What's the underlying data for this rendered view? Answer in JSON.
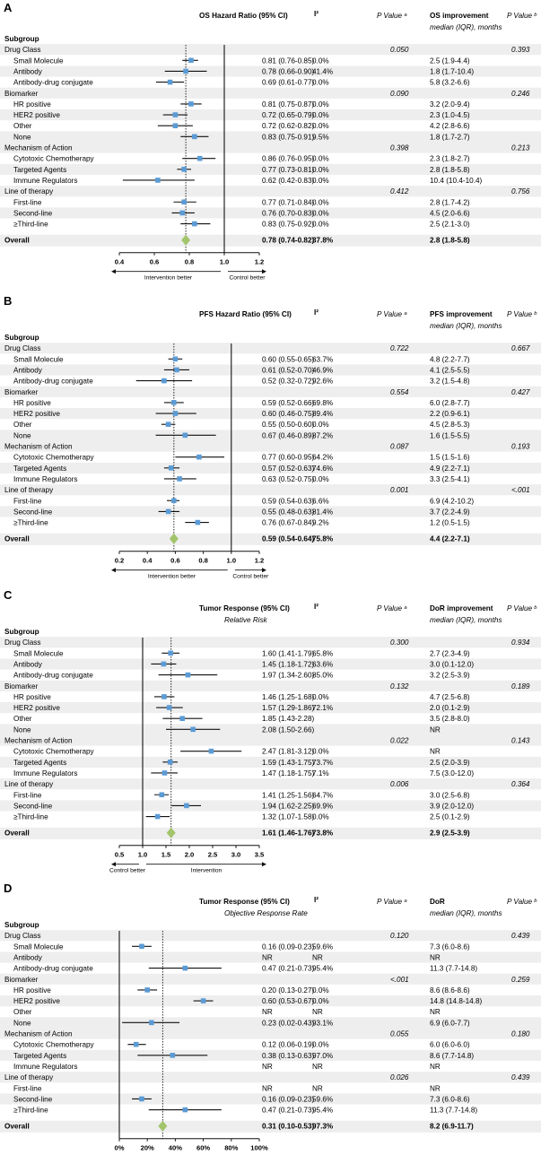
{
  "colors": {
    "row_shade": "#eeeeee",
    "point": "#5b9bd5",
    "diamond": "#a2c46b",
    "line": "#111111"
  },
  "panels": [
    {
      "id": "A",
      "header": {
        "estimate": "OS Hazard Ratio (95% CI)",
        "estimate_sub": "",
        "i2": "I²",
        "pa": "P Value ᵃ",
        "imp": "OS improvement",
        "imp_sub": "median (IQR), months",
        "pb": "P Value ᵇ"
      },
      "subgroup_label": "Subgroup",
      "groups": [
        {
          "name": "Drug Class",
          "pa": "0.050",
          "pb": "0.393",
          "rows": [
            {
              "label": "Small Molecule",
              "ci": "0.81 (0.76-0.85)",
              "i2": "0.0%",
              "imp": "2.5 (1.9-4.4)"
            },
            {
              "label": "Antibody",
              "ci": "0.78 (0.66-0.90)",
              "i2": "41.4%",
              "imp": "1.8 (1.7-10.4)"
            },
            {
              "label": "Antibody-drug conjugate",
              "ci": "0.69 (0.61-0.77)",
              "i2": "0.0%",
              "imp": "5.8 (3.2-6.6)"
            }
          ]
        },
        {
          "name": "Biomarker",
          "pa": "0.090",
          "pb": "0.246",
          "rows": [
            {
              "label": "HR positive",
              "ci": "0.81 (0.75-0.87)",
              "i2": "0.0%",
              "imp": "3.2 (2.0-9.4)"
            },
            {
              "label": "HER2 positive",
              "ci": "0.72 (0.65-0.79)",
              "i2": "0.0%",
              "imp": "2.3 (1.0-4.5)"
            },
            {
              "label": "Other",
              "ci": "0.72 (0.62-0.82)",
              "i2": "0.0%",
              "imp": "4.2 (2.8-6.6)"
            },
            {
              "label": "None",
              "ci": "0.83 (0.75-0.91)",
              "i2": "9.5%",
              "imp": "1.8 (1.7-2.7)"
            }
          ]
        },
        {
          "name": "Mechanism of Action",
          "pa": "0.398",
          "pb": "0.213",
          "rows": [
            {
              "label": "Cytotoxic Chemotherapy",
              "ci": "0.86 (0.76-0.95)",
              "i2": "0.0%",
              "imp": "2.3 (1.8-2.7)"
            },
            {
              "label": "Targeted Agents",
              "ci": "0.77 (0.73-0.81)",
              "i2": "0.0%",
              "imp": "2.8 (1.8-5.8)"
            },
            {
              "label": "Immune Regulators",
              "ci": "0.62 (0.42-0.83)",
              "i2": "0.0%",
              "imp": "10.4 (10.4-10.4)"
            }
          ]
        },
        {
          "name": "Line of therapy",
          "pa": "0.412",
          "pb": "0.756",
          "rows": [
            {
              "label": "First-line",
              "ci": "0.77 (0.71-0.84)",
              "i2": "0.0%",
              "imp": "2.8 (1.7-4.2)"
            },
            {
              "label": "Second-line",
              "ci": "0.76 (0.70-0.83)",
              "i2": "0.0%",
              "imp": "4.5 (2.0-6.6)"
            },
            {
              "label": "≥Third-line",
              "ci": "0.83 (0.75-0.92)",
              "i2": "0.0%",
              "imp": "2.5 (2.1-3.0)"
            }
          ]
        }
      ],
      "overall": {
        "label": "Overall",
        "ci": "0.78 (0.74-0.82)",
        "i2": "37.8%",
        "imp": "2.8 (1.8-5.8)"
      },
      "left_note": "Intervention better",
      "right_note": "Control better"
    },
    {
      "id": "B",
      "header": {
        "estimate": "PFS Hazard Ratio (95% CI)",
        "estimate_sub": "",
        "i2": "I²",
        "pa": "P Value ᵃ",
        "imp": "PFS improvement",
        "imp_sub": "median (IQR), months",
        "pb": "P Value ᵇ"
      },
      "subgroup_label": "Subgroup",
      "groups": [
        {
          "name": "Drug Class",
          "pa": "0.722",
          "pb": "0.667",
          "rows": [
            {
              "label": "Small Molecule",
              "ci": "0.60 (0.55-0.65)",
              "i2": "63.7%",
              "imp": "4.8 (2.2-7.7)"
            },
            {
              "label": "Antibody",
              "ci": "0.61 (0.52-0.70)",
              "i2": "46.9%",
              "imp": "4.1 (2.5-5.5)"
            },
            {
              "label": "Antibody-drug conjugate",
              "ci": "0.52 (0.32-0.72)",
              "i2": "92.6%",
              "imp": "3.2 (1.5-4.8)"
            }
          ]
        },
        {
          "name": "Biomarker",
          "pa": "0.554",
          "pb": "0.427",
          "rows": [
            {
              "label": "HR positive",
              "ci": "0.59 (0.52-0.66)",
              "i2": "69.8%",
              "imp": "6.0 (2.8-7.7)"
            },
            {
              "label": "HER2 positive",
              "ci": "0.60 (0.46-0.75)",
              "i2": "89.4%",
              "imp": "2.2 (0.9-6.1)"
            },
            {
              "label": "Other",
              "ci": "0.55 (0.50-0.60)",
              "i2": "0.0%",
              "imp": "4.5 (2.8-5.3)"
            },
            {
              "label": "None",
              "ci": "0.67 (0.46-0.89)",
              "i2": "87.2%",
              "imp": "1.6 (1.5-5.5)"
            }
          ]
        },
        {
          "name": "Mechanism of Action",
          "pa": "0.087",
          "pb": "0.193",
          "rows": [
            {
              "label": "Cytotoxic Chemotherapy",
              "ci": "0.77 (0.60-0.95)",
              "i2": "64.2%",
              "imp": "1.5 (1.5-1.6)"
            },
            {
              "label": "Targeted Agents",
              "ci": "0.57 (0.52-0.63)",
              "i2": "74.6%",
              "imp": "4.9 (2.2-7.1)"
            },
            {
              "label": "Immune Regulators",
              "ci": "0.63 (0.52-0.75)",
              "i2": "0.0%",
              "imp": "3.3 (2.5-4.1)"
            }
          ]
        },
        {
          "name": "Line of therapy",
          "pa": "0.001",
          "pb": "<.001",
          "rows": [
            {
              "label": "First-line",
              "ci": "0.59 (0.54-0.63)",
              "i2": "6.6%",
              "imp": "6.9 (4.2-10.2)"
            },
            {
              "label": "Second-line",
              "ci": "0.55 (0.48-0.63)",
              "i2": "81.4%",
              "imp": "3.7 (2.2-4.9)"
            },
            {
              "label": "≥Third-line",
              "ci": "0.76 (0.67-0.84)",
              "i2": "9.2%",
              "imp": "1.2 (0.5-1.5)"
            }
          ]
        }
      ],
      "overall": {
        "label": "Overall",
        "ci": "0.59 (0.54-0.64)",
        "i2": "75.8%",
        "imp": "4.4 (2.2-7.1)"
      },
      "left_note": "Intervention better",
      "right_note": "Control better"
    },
    {
      "id": "C",
      "header": {
        "estimate": "Tumor Response (95% CI)",
        "estimate_sub": "Relative Risk",
        "i2": "I²",
        "pa": "P Value ᵃ",
        "imp": "DoR improvement",
        "imp_sub": "median (IQR), months",
        "pb": "P Value ᵇ"
      },
      "subgroup_label": "Subgroup",
      "groups": [
        {
          "name": "Drug Class",
          "pa": "0.300",
          "pb": "0.934",
          "rows": [
            {
              "label": "Small Molecule",
              "ci": "1.60 (1.41-1.79)",
              "i2": "65.8%",
              "imp": "2.7 (2.3-4.9)"
            },
            {
              "label": "Antibody",
              "ci": "1.45 (1.18-1.72)",
              "i2": "63.6%",
              "imp": "3.0 (0.1-12.0)"
            },
            {
              "label": "Antibody-drug conjugate",
              "ci": "1.97 (1.34-2.60)",
              "i2": "85.0%",
              "imp": "3.2 (2.5-3.9)"
            }
          ]
        },
        {
          "name": "Biomarker",
          "pa": "0.132",
          "pb": "0.189",
          "rows": [
            {
              "label": "HR positive",
              "ci": "1.46 (1.25-1.68)",
              "i2": "0.0%",
              "imp": "4.7 (2.5-6.8)"
            },
            {
              "label": "HER2 positive",
              "ci": "1.57 (1.29-1.86)",
              "i2": "72.1%",
              "imp": "2.0 (0.1-2.9)"
            },
            {
              "label": "Other",
              "ci": "1.85 (1.43-2.28)",
              "i2": "",
              "imp": "3.5 (2.8-8.0)"
            },
            {
              "label": "None",
              "ci": "2.08 (1.50-2.66)",
              "i2": "",
              "imp": "NR"
            }
          ]
        },
        {
          "name": "Mechanism of Action",
          "pa": "0.022",
          "pb": "0.143",
          "rows": [
            {
              "label": "Cytotoxic Chemotherapy",
              "ci": "2.47 (1.81-3.12)",
              "i2": "0.0%",
              "imp": "NR"
            },
            {
              "label": "Targeted Agents",
              "ci": "1.59 (1.43-1.75)",
              "i2": "73.7%",
              "imp": "2.5 (2.0-3.9)"
            },
            {
              "label": "Immune Regulators",
              "ci": "1.47 (1.18-1.75)",
              "i2": "7.1%",
              "imp": "7.5 (3.0-12.0)"
            }
          ]
        },
        {
          "name": "Line of therapy",
          "pa": "0.006",
          "pb": "0.364",
          "rows": [
            {
              "label": "First-line",
              "ci": "1.41 (1.25-1.56)",
              "i2": "64.7%",
              "imp": "3.0 (2.5-6.8)"
            },
            {
              "label": "Second-line",
              "ci": "1.94 (1.62-2.25)",
              "i2": "69.9%",
              "imp": "3.9 (2.0-12.0)"
            },
            {
              "label": "≥Third-line",
              "ci": "1.32 (1.07-1.58)",
              "i2": "0.0%",
              "imp": "2.5 (0.1-2.9)"
            }
          ]
        }
      ],
      "overall": {
        "label": "Overall",
        "ci": "1.61 (1.46-1.76)",
        "i2": "73.8%",
        "imp": "2.9 (2.5-3.9)"
      },
      "left_note": "Control better",
      "right_note": "Intervention"
    },
    {
      "id": "D",
      "header": {
        "estimate": "Tumor Response (95% CI)",
        "estimate_sub": "Objective Response Rate",
        "i2": "I²",
        "pa": "P Value ᵃ",
        "imp": "DoR",
        "imp_sub": "median (IQR), months",
        "pb": "P Value ᵇ"
      },
      "subgroup_label": "Subgroup",
      "groups": [
        {
          "name": "Drug Class",
          "pa": "0.120",
          "pb": "0.439",
          "rows": [
            {
              "label": "Small Molecule",
              "ci": "0.16 (0.09-0.23)",
              "i2": "59.6%",
              "imp": "7.3 (6.0-8.6)"
            },
            {
              "label": "Antibody",
              "ci": "NR",
              "i2": "NR",
              "imp": "NR"
            },
            {
              "label": "Antibody-drug conjugate",
              "ci": "0.47 (0.21-0.73)",
              "i2": "95.4%",
              "imp": "11.3 (7.7-14.8)"
            }
          ]
        },
        {
          "name": "Biomarker",
          "pa": "<.001",
          "pb": "0.259",
          "rows": [
            {
              "label": "HR positive",
              "ci": "0.20 (0.13-0.27)",
              "i2": "0.0%",
              "imp": "8.6 (8.6-8.6)"
            },
            {
              "label": "HER2 positive",
              "ci": "0.60 (0.53-0.67)",
              "i2": "0.0%",
              "imp": "14.8 (14.8-14.8)"
            },
            {
              "label": "Other",
              "ci": "NR",
              "i2": "NR",
              "imp": "NR"
            },
            {
              "label": "None",
              "ci": "0.23 (0.02-0.43)",
              "i2": "93.1%",
              "imp": "6.9 (6.0-7.7)"
            }
          ]
        },
        {
          "name": "Mechanism of Action",
          "pa": "0.055",
          "pb": "0.180",
          "rows": [
            {
              "label": "Cytotoxic Chemotherapy",
              "ci": "0.12 (0.06-0.19)",
              "i2": "0.0%",
              "imp": "6.0 (6.0-6.0)"
            },
            {
              "label": "Targeted Agents",
              "ci": "0.38 (0.13-0.63)",
              "i2": "97.0%",
              "imp": "8.6 (7.7-14.8)"
            },
            {
              "label": "Immune Regulators",
              "ci": "NR",
              "i2": "NR",
              "imp": "NR"
            }
          ]
        },
        {
          "name": "Line of therapy",
          "pa": "0.026",
          "pb": "0.439",
          "rows": [
            {
              "label": "First-line",
              "ci": "NR",
              "i2": "NR",
              "imp": "NR"
            },
            {
              "label": "Second-line",
              "ci": "0.16 (0.09-0.23)",
              "i2": "59.6%",
              "imp": "7.3 (6.0-8.6)"
            },
            {
              "label": "≥Third-line",
              "ci": "0.47 (0.21-0.73)",
              "i2": "95.4%",
              "imp": "11.3 (7.7-14.8)"
            }
          ]
        }
      ],
      "overall": {
        "label": "Overall",
        "ci": "0.31 (0.10-0.53)",
        "i2": "97.3%",
        "imp": "8.2 (6.9-11.7)"
      },
      "left_note": "",
      "right_note": ""
    }
  ],
  "chart_data": [
    {
      "type": "forest",
      "title": "OS Hazard Ratio (95% CI)",
      "xlabel": "",
      "xlim": [
        0.4,
        1.2
      ],
      "xticks": [
        0.4,
        0.6,
        0.8,
        1.0,
        1.2
      ],
      "xtick_labels": [
        "0.4",
        "0.6",
        "0.8",
        "1.0",
        "1.2"
      ],
      "null_value": 1.0,
      "reference": 0.78,
      "points": [
        [
          0.81,
          0.76,
          0.85
        ],
        [
          0.78,
          0.66,
          0.9
        ],
        [
          0.69,
          0.61,
          0.77
        ],
        [
          0.81,
          0.75,
          0.87
        ],
        [
          0.72,
          0.65,
          0.79
        ],
        [
          0.72,
          0.62,
          0.82
        ],
        [
          0.83,
          0.75,
          0.91
        ],
        [
          0.86,
          0.76,
          0.95
        ],
        [
          0.77,
          0.73,
          0.81
        ],
        [
          0.62,
          0.42,
          0.83
        ],
        [
          0.77,
          0.71,
          0.84
        ],
        [
          0.76,
          0.7,
          0.83
        ],
        [
          0.83,
          0.75,
          0.92
        ]
      ],
      "overall": [
        0.78,
        0.74,
        0.82
      ]
    },
    {
      "type": "forest",
      "title": "PFS Hazard Ratio (95% CI)",
      "xlabel": "",
      "xlim": [
        0.2,
        1.2
      ],
      "xticks": [
        0.2,
        0.4,
        0.6,
        0.8,
        1.0,
        1.2
      ],
      "xtick_labels": [
        "0.2",
        "0.4",
        "0.6",
        "0.8",
        "1.0",
        "1.2"
      ],
      "null_value": 1.0,
      "reference": 0.59,
      "points": [
        [
          0.6,
          0.55,
          0.65
        ],
        [
          0.61,
          0.52,
          0.7
        ],
        [
          0.52,
          0.32,
          0.72
        ],
        [
          0.59,
          0.52,
          0.66
        ],
        [
          0.6,
          0.46,
          0.75
        ],
        [
          0.55,
          0.5,
          0.6
        ],
        [
          0.67,
          0.46,
          0.89
        ],
        [
          0.77,
          0.6,
          0.95
        ],
        [
          0.57,
          0.52,
          0.63
        ],
        [
          0.63,
          0.52,
          0.75
        ],
        [
          0.59,
          0.54,
          0.63
        ],
        [
          0.55,
          0.48,
          0.63
        ],
        [
          0.76,
          0.67,
          0.84
        ]
      ],
      "overall": [
        0.59,
        0.54,
        0.64
      ]
    },
    {
      "type": "forest",
      "title": "Tumor Response (95% CI) Relative Risk",
      "xlabel": "",
      "xlim": [
        0.5,
        3.5
      ],
      "xticks": [
        0.5,
        1.0,
        1.5,
        2.0,
        2.5,
        3.0,
        3.5
      ],
      "xtick_labels": [
        "0.5",
        "1.0",
        "1.5",
        "2.0",
        "2.5",
        "3.0",
        "3.5"
      ],
      "null_value": 1.0,
      "reference": 1.61,
      "points": [
        [
          1.6,
          1.41,
          1.79
        ],
        [
          1.45,
          1.18,
          1.72
        ],
        [
          1.97,
          1.34,
          2.6
        ],
        [
          1.46,
          1.25,
          1.68
        ],
        [
          1.57,
          1.29,
          1.86
        ],
        [
          1.85,
          1.43,
          2.28
        ],
        [
          2.08,
          1.5,
          2.66
        ],
        [
          2.47,
          1.81,
          3.12
        ],
        [
          1.59,
          1.43,
          1.75
        ],
        [
          1.47,
          1.18,
          1.75
        ],
        [
          1.41,
          1.25,
          1.56
        ],
        [
          1.94,
          1.62,
          2.25
        ],
        [
          1.32,
          1.07,
          1.58
        ]
      ],
      "overall": [
        1.61,
        1.46,
        1.76
      ]
    },
    {
      "type": "forest",
      "title": "Tumor Response (95% CI) Objective Response Rate",
      "xlabel": "",
      "xlim": [
        0,
        1
      ],
      "xticks": [
        0,
        0.2,
        0.4,
        0.6,
        0.8,
        1.0
      ],
      "xtick_labels": [
        "0%",
        "20%",
        "40%",
        "60%",
        "80%",
        "100%"
      ],
      "null_value": 0,
      "reference": 0.31,
      "points": [
        [
          0.16,
          0.09,
          0.23
        ],
        null,
        [
          0.47,
          0.21,
          0.73
        ],
        [
          0.2,
          0.13,
          0.27
        ],
        [
          0.6,
          0.53,
          0.67
        ],
        null,
        [
          0.23,
          0.02,
          0.43
        ],
        [
          0.12,
          0.06,
          0.19
        ],
        [
          0.38,
          0.13,
          0.63
        ],
        null,
        null,
        [
          0.16,
          0.09,
          0.23
        ],
        [
          0.47,
          0.21,
          0.73
        ]
      ],
      "overall": [
        0.31,
        0.1,
        0.53
      ]
    }
  ]
}
